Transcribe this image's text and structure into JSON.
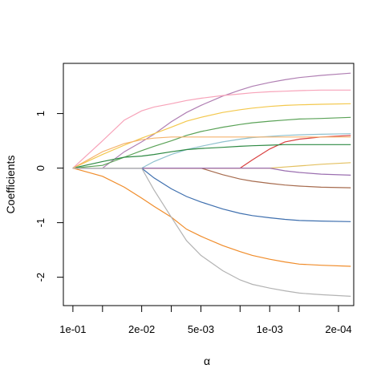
{
  "chart_data": {
    "type": "line",
    "title": "",
    "xlabel": "α",
    "ylabel": "Coefficients",
    "x_scale": "log-reversed",
    "x_ticks": [
      {
        "value": 0.1,
        "label": "1e-01"
      },
      {
        "value": 0.02,
        "label": "2e-02"
      },
      {
        "value": 0.005,
        "label": "5e-03"
      },
      {
        "value": 0.001,
        "label": "1e-03"
      },
      {
        "value": 0.0002,
        "label": "2e-04"
      }
    ],
    "x_minor_ticks": [
      0.05,
      0.01,
      0.002,
      0.0005
    ],
    "y_ticks": [
      {
        "value": -2,
        "label": "-2"
      },
      {
        "value": -1,
        "label": "-1"
      },
      {
        "value": 0,
        "label": "0"
      },
      {
        "value": 1,
        "label": "1"
      }
    ],
    "xlim": [
      0.125,
      0.00014
    ],
    "ylim": [
      -2.52,
      1.92
    ],
    "grid": false,
    "legend": "none",
    "x": [
      0.1,
      0.05,
      0.03,
      0.02,
      0.015,
      0.01,
      0.007,
      0.005,
      0.003,
      0.002,
      0.0015,
      0.001,
      0.0007,
      0.0005,
      0.0003,
      0.00015
    ],
    "series": [
      {
        "color": "#b07fb3",
        "values": [
          0,
          0,
          0.3,
          0.48,
          0.62,
          0.85,
          1.02,
          1.15,
          1.32,
          1.43,
          1.5,
          1.57,
          1.62,
          1.66,
          1.7,
          1.74
        ]
      },
      {
        "color": "#f7a3b9",
        "values": [
          0,
          0.5,
          0.88,
          1.05,
          1.12,
          1.18,
          1.24,
          1.28,
          1.33,
          1.36,
          1.38,
          1.4,
          1.41,
          1.42,
          1.43,
          1.43
        ]
      },
      {
        "color": "#f3c84d",
        "values": [
          0,
          0.25,
          0.42,
          0.55,
          0.63,
          0.75,
          0.86,
          0.93,
          1.02,
          1.07,
          1.1,
          1.13,
          1.15,
          1.16,
          1.17,
          1.18
        ]
      },
      {
        "color": "#5aa257",
        "values": [
          0,
          0.05,
          0.2,
          0.32,
          0.4,
          0.5,
          0.6,
          0.67,
          0.75,
          0.8,
          0.83,
          0.86,
          0.88,
          0.9,
          0.91,
          0.93
        ]
      },
      {
        "color": "#8fc1ce",
        "values": [
          0,
          0,
          0,
          0,
          0.12,
          0.25,
          0.34,
          0.4,
          0.48,
          0.53,
          0.56,
          0.58,
          0.6,
          0.61,
          0.62,
          0.63
        ]
      },
      {
        "color": "#d94040",
        "values": [
          0,
          0,
          0,
          0,
          0,
          0,
          0,
          0,
          0,
          0,
          0.15,
          0.35,
          0.48,
          0.53,
          0.57,
          0.6
        ]
      },
      {
        "color": "#2f8a44",
        "values": [
          0,
          0.12,
          0.2,
          0.22,
          0.25,
          0.3,
          0.34,
          0.36,
          0.38,
          0.4,
          0.41,
          0.42,
          0.43,
          0.43,
          0.43,
          0.43
        ]
      },
      {
        "color": "#f5b36e",
        "values": [
          0,
          0.3,
          0.45,
          0.52,
          0.55,
          0.57,
          0.57,
          0.57,
          0.57,
          0.57,
          0.57,
          0.57,
          0.57,
          0.57,
          0.57,
          0.57
        ]
      },
      {
        "color": "#e3c060",
        "values": [
          0,
          0,
          0,
          0,
          0,
          0,
          0,
          0,
          0,
          0,
          0,
          0,
          0.02,
          0.04,
          0.07,
          0.1
        ]
      },
      {
        "color": "#a66b4e",
        "values": [
          0,
          0,
          0,
          0,
          0,
          0,
          0,
          0,
          -0.12,
          -0.2,
          -0.24,
          -0.28,
          -0.31,
          -0.33,
          -0.35,
          -0.36
        ]
      },
      {
        "color": "#9b6fb0",
        "values": [
          0,
          0,
          0,
          0,
          0,
          0,
          0,
          0,
          0,
          0,
          0,
          0,
          -0.05,
          -0.08,
          -0.11,
          -0.13
        ]
      },
      {
        "color": "#3e6fae",
        "values": [
          0,
          0,
          0,
          0,
          -0.18,
          -0.38,
          -0.52,
          -0.62,
          -0.75,
          -0.83,
          -0.87,
          -0.91,
          -0.94,
          -0.96,
          -0.97,
          -0.98
        ]
      },
      {
        "color": "#f08c2a",
        "values": [
          0,
          -0.15,
          -0.35,
          -0.55,
          -0.7,
          -0.9,
          -1.12,
          -1.25,
          -1.42,
          -1.53,
          -1.6,
          -1.67,
          -1.72,
          -1.76,
          -1.78,
          -1.8
        ]
      },
      {
        "color": "#b3b3b3",
        "values": [
          0,
          0,
          0,
          0,
          -0.4,
          -0.9,
          -1.33,
          -1.6,
          -1.88,
          -2.05,
          -2.13,
          -2.2,
          -2.25,
          -2.29,
          -2.32,
          -2.35
        ]
      }
    ]
  }
}
